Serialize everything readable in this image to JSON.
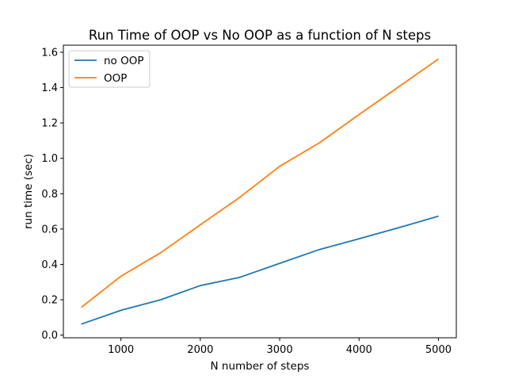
{
  "chart_data": {
    "type": "line",
    "title": "Run Time of OOP vs No OOP as a function of N steps",
    "xlabel": "N number of steps",
    "ylabel": "run time (sec)",
    "x": [
      500,
      1000,
      1500,
      2000,
      2500,
      3000,
      3500,
      4000,
      4500,
      5000
    ],
    "xticks": [
      1000,
      2000,
      3000,
      4000,
      5000
    ],
    "yticks": [
      0.0,
      0.2,
      0.4,
      0.6,
      0.8,
      1.0,
      1.2,
      1.4,
      1.6
    ],
    "xlim": [
      275,
      5225
    ],
    "ylim": [
      -0.015,
      1.64
    ],
    "grid": false,
    "legend_position": "upper-left",
    "series": [
      {
        "name": "no OOP",
        "color": "#1f77b4",
        "values": [
          0.062,
          0.14,
          0.2,
          0.28,
          0.327,
          0.406,
          0.484,
          0.545,
          0.608,
          0.673
        ]
      },
      {
        "name": "OOP",
        "color": "#ff7f0e",
        "values": [
          0.157,
          0.333,
          0.466,
          0.624,
          0.78,
          0.955,
          1.088,
          1.248,
          1.405,
          1.562
        ]
      }
    ]
  }
}
